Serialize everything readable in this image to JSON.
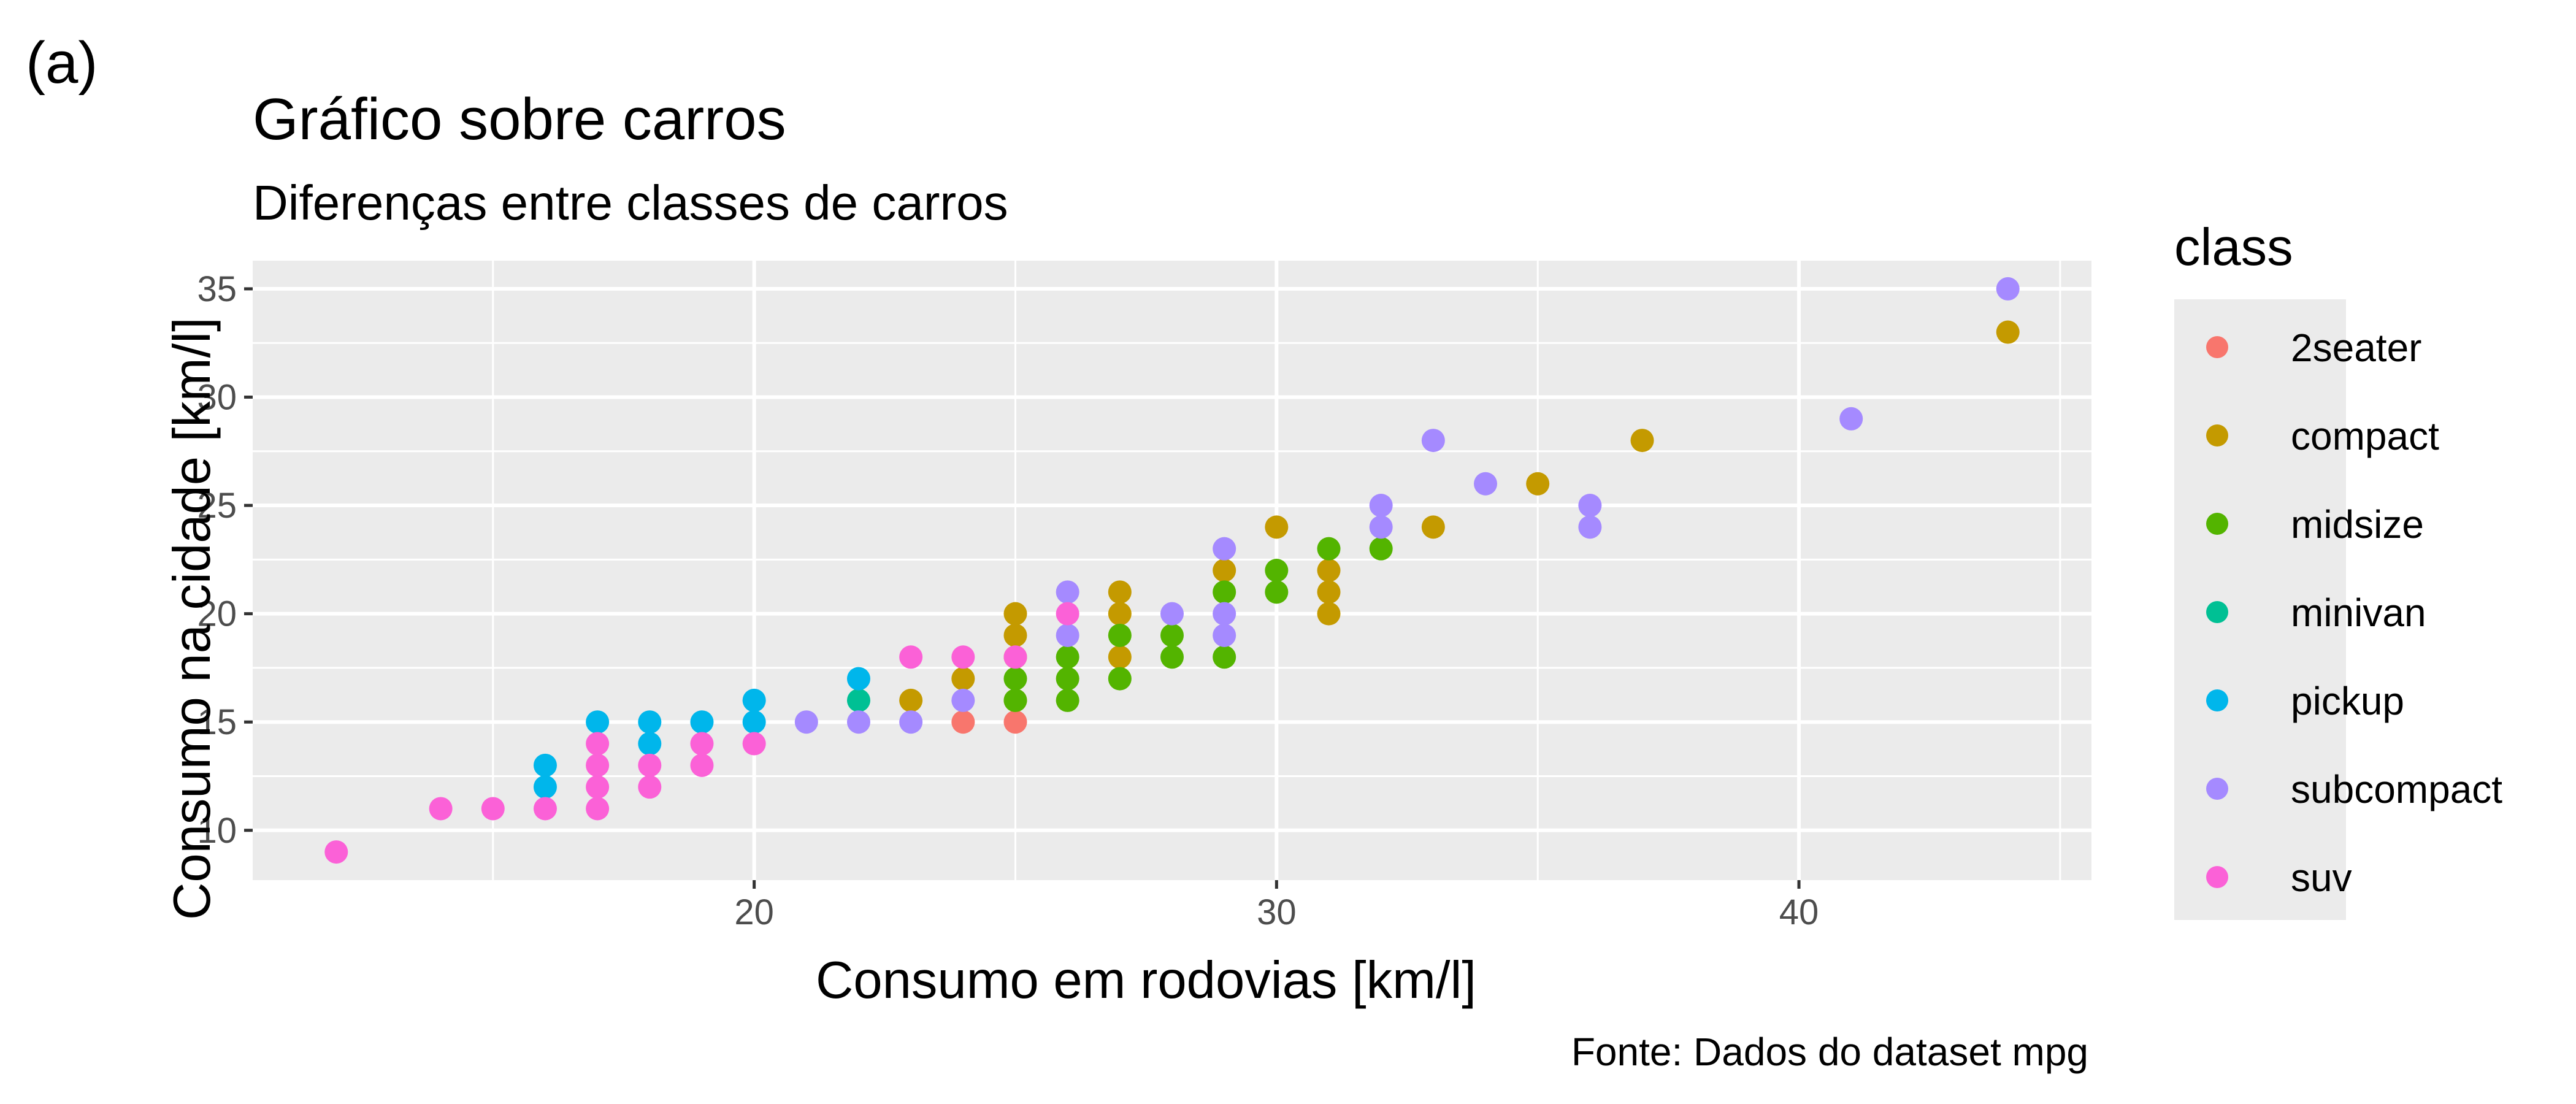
{
  "panel_tag": "(a)",
  "chart_data": {
    "type": "scatter",
    "title": "Gráfico sobre carros",
    "subtitle": "Diferenças entre classes de carros",
    "caption": "Fonte: Dados do dataset mpg",
    "xlabel": "Consumo em rodovias [km/l]",
    "ylabel": "Consumo na cidade [km/l]",
    "xlim": [
      10.4,
      45.6
    ],
    "ylim": [
      7.7,
      36.3
    ],
    "x_ticks": [
      20,
      30,
      40
    ],
    "y_ticks": [
      10,
      15,
      20,
      25,
      30,
      35
    ],
    "grid": true,
    "legend": {
      "title": "class",
      "placement": "right",
      "entries": [
        "2seater",
        "compact",
        "midsize",
        "minivan",
        "pickup",
        "subcompact",
        "suv"
      ]
    },
    "colors": {
      "2seater": "#F8766D",
      "compact": "#C49A00",
      "midsize": "#53B400",
      "minivan": "#00C094",
      "pickup": "#00B6EB",
      "subcompact": "#A58AFF",
      "suv": "#FB61D7"
    },
    "series": [
      {
        "name": "2seater",
        "points": [
          [
            24,
            15
          ],
          [
            25,
            15
          ]
        ]
      },
      {
        "name": "compact",
        "points": [
          [
            23,
            16
          ],
          [
            24,
            17
          ],
          [
            25,
            16
          ],
          [
            25,
            18
          ],
          [
            25,
            19
          ],
          [
            25,
            20
          ],
          [
            27,
            18
          ],
          [
            27,
            20
          ],
          [
            27,
            21
          ],
          [
            29,
            22
          ],
          [
            30,
            24
          ],
          [
            31,
            20
          ],
          [
            31,
            21
          ],
          [
            31,
            22
          ],
          [
            33,
            24
          ],
          [
            35,
            26
          ],
          [
            37,
            28
          ],
          [
            44,
            33
          ]
        ]
      },
      {
        "name": "midsize",
        "points": [
          [
            25,
            16
          ],
          [
            25,
            17
          ],
          [
            26,
            16
          ],
          [
            26,
            17
          ],
          [
            26,
            18
          ],
          [
            27,
            17
          ],
          [
            27,
            19
          ],
          [
            28,
            18
          ],
          [
            28,
            19
          ],
          [
            29,
            18
          ],
          [
            29,
            21
          ],
          [
            30,
            21
          ],
          [
            30,
            22
          ],
          [
            31,
            23
          ],
          [
            32,
            23
          ]
        ]
      },
      {
        "name": "minivan",
        "points": [
          [
            22,
            16
          ]
        ]
      },
      {
        "name": "pickup",
        "points": [
          [
            16,
            12
          ],
          [
            16,
            13
          ],
          [
            17,
            15
          ],
          [
            18,
            14
          ],
          [
            18,
            15
          ],
          [
            19,
            15
          ],
          [
            20,
            15
          ],
          [
            20,
            16
          ],
          [
            22,
            17
          ]
        ]
      },
      {
        "name": "subcompact",
        "points": [
          [
            21,
            15
          ],
          [
            22,
            15
          ],
          [
            23,
            15
          ],
          [
            24,
            16
          ],
          [
            26,
            19
          ],
          [
            26,
            21
          ],
          [
            28,
            20
          ],
          [
            29,
            19
          ],
          [
            29,
            20
          ],
          [
            29,
            23
          ],
          [
            32,
            24
          ],
          [
            32,
            25
          ],
          [
            33,
            28
          ],
          [
            34,
            26
          ],
          [
            36,
            24
          ],
          [
            36,
            25
          ],
          [
            41,
            29
          ],
          [
            44,
            35
          ]
        ]
      },
      {
        "name": "suv",
        "points": [
          [
            12,
            9
          ],
          [
            14,
            11
          ],
          [
            15,
            11
          ],
          [
            16,
            11
          ],
          [
            17,
            11
          ],
          [
            17,
            12
          ],
          [
            17,
            13
          ],
          [
            17,
            14
          ],
          [
            18,
            12
          ],
          [
            18,
            13
          ],
          [
            19,
            13
          ],
          [
            19,
            14
          ],
          [
            20,
            14
          ],
          [
            23,
            18
          ],
          [
            24,
            18
          ],
          [
            25,
            18
          ],
          [
            26,
            20
          ]
        ]
      }
    ]
  }
}
